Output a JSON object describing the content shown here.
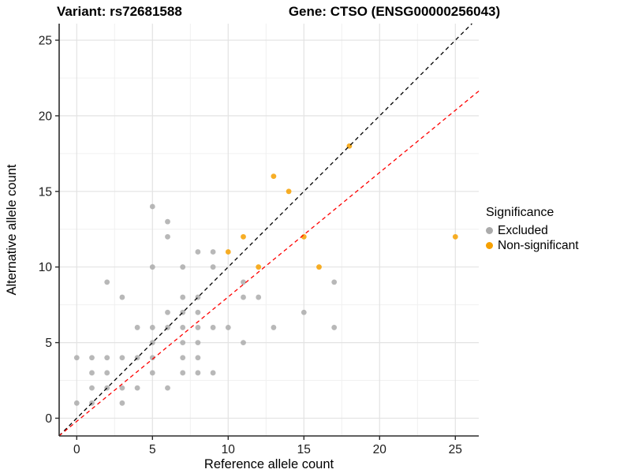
{
  "titles": {
    "variant": "Variant: rs72681588",
    "gene": "Gene: CTSO (ENSG00000256043)"
  },
  "legend": {
    "title": "Significance",
    "items": [
      {
        "label": "Excluded",
        "color": "#ABABAB"
      },
      {
        "label": "Non-significant",
        "color": "#F6A000"
      }
    ]
  },
  "chart_data": {
    "type": "scatter",
    "title": "Variant: rs72681588 — Gene: CTSO (ENSG00000256043)",
    "xlabel": "Reference allele count",
    "ylabel": "Alternative allele count",
    "xlim": [
      -1.17,
      26.55
    ],
    "ylim": [
      -1.17,
      26.1
    ],
    "x_ticks": [
      0,
      5,
      10,
      15,
      20,
      25
    ],
    "y_ticks": [
      0,
      5,
      10,
      15,
      20,
      25
    ],
    "minor_ticks": [
      2.5,
      7.5,
      12.5,
      17.5,
      22.5
    ],
    "grid": true,
    "legend_position": "right",
    "series": [
      {
        "name": "Excluded",
        "color": "#ABABAB",
        "points": [
          [
            0,
            1
          ],
          [
            0,
            4
          ],
          [
            1,
            1
          ],
          [
            1,
            2
          ],
          [
            1,
            3
          ],
          [
            1,
            4
          ],
          [
            2,
            2
          ],
          [
            2,
            3
          ],
          [
            2,
            4
          ],
          [
            2,
            9
          ],
          [
            3,
            1
          ],
          [
            3,
            2
          ],
          [
            3,
            4
          ],
          [
            3,
            8
          ],
          [
            4,
            2
          ],
          [
            4,
            4
          ],
          [
            4,
            6
          ],
          [
            5,
            3
          ],
          [
            5,
            4
          ],
          [
            5,
            5
          ],
          [
            5,
            6
          ],
          [
            5,
            10
          ],
          [
            5,
            14
          ],
          [
            6,
            2
          ],
          [
            6,
            6
          ],
          [
            6,
            7
          ],
          [
            6,
            12
          ],
          [
            6,
            13
          ],
          [
            7,
            3
          ],
          [
            7,
            4
          ],
          [
            7,
            5
          ],
          [
            7,
            6
          ],
          [
            7,
            7
          ],
          [
            7,
            8
          ],
          [
            7,
            10
          ],
          [
            8,
            3
          ],
          [
            8,
            4
          ],
          [
            8,
            5
          ],
          [
            8,
            6
          ],
          [
            8,
            7
          ],
          [
            8,
            8
          ],
          [
            8,
            11
          ],
          [
            9,
            3
          ],
          [
            9,
            6
          ],
          [
            9,
            10
          ],
          [
            9,
            11
          ],
          [
            10,
            6
          ],
          [
            11,
            5
          ],
          [
            11,
            8
          ],
          [
            11,
            9
          ],
          [
            12,
            8
          ],
          [
            13,
            6
          ],
          [
            15,
            7
          ],
          [
            17,
            6
          ],
          [
            17,
            9
          ]
        ]
      },
      {
        "name": "Non-significant",
        "color": "#F6A000",
        "points": [
          [
            10,
            11
          ],
          [
            11,
            12
          ],
          [
            12,
            10
          ],
          [
            13,
            16
          ],
          [
            14,
            15
          ],
          [
            15,
            12
          ],
          [
            16,
            10
          ],
          [
            18,
            18
          ],
          [
            25,
            12
          ]
        ]
      }
    ],
    "lines": [
      {
        "name": "identity-line",
        "color": "#000000",
        "dashed": true,
        "from": [
          -1.17,
          -1.17
        ],
        "to": [
          26.1,
          26.1
        ]
      },
      {
        "name": "fit-line",
        "color": "#FF0000",
        "dashed": true,
        "from": [
          -1.17,
          -1.17
        ],
        "to": [
          26.55,
          21.64
        ]
      }
    ]
  },
  "style": {
    "grid_major": "#E3E3E3",
    "grid_minor": "#F0F0F0",
    "axis_color": "#2B2B2B",
    "tick_label_color": "#1A1A1A",
    "point_radius": 3.4
  }
}
